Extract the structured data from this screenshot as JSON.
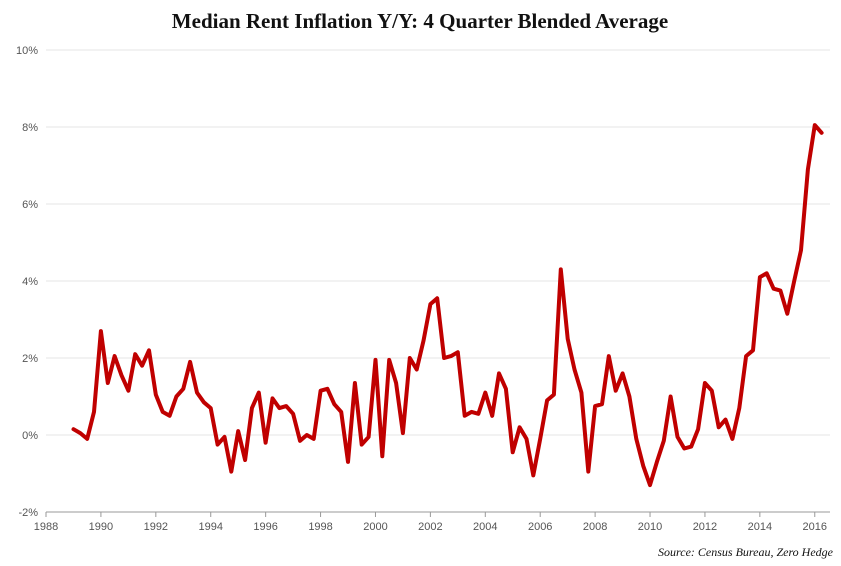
{
  "chart_data": {
    "type": "line",
    "title": "Median Rent Inflation Y/Y: 4 Quarter Blended Average",
    "source": "Source: Census Bureau, Zero Hedge",
    "xlabel": "",
    "ylabel": "",
    "xlim": [
      1988,
      2016.3
    ],
    "ylim": [
      -2,
      10
    ],
    "x_ticks": [
      "1988",
      "1990",
      "1992",
      "1994",
      "1996",
      "1998",
      "2000",
      "2002",
      "2004",
      "2006",
      "2008",
      "2010",
      "2012",
      "2014",
      "2016"
    ],
    "y_ticks": [
      "10%",
      "8%",
      "6%",
      "4%",
      "2%",
      "0%",
      "-2%"
    ],
    "grid": true,
    "legend": "none",
    "line_color": "#c00000",
    "series": [
      {
        "x": [
          1989.0,
          1989.25,
          1989.5,
          1989.75,
          1990.0,
          1990.25,
          1990.5,
          1990.75,
          1991.0,
          1991.25,
          1991.5,
          1991.75,
          1992.0,
          1992.25,
          1992.5,
          1992.75,
          1993.0,
          1993.25,
          1993.5,
          1993.75,
          1994.0,
          1994.25,
          1994.5,
          1994.75,
          1995.0,
          1995.25,
          1995.5,
          1995.75,
          1996.0,
          1996.25,
          1996.5,
          1996.75,
          1997.0,
          1997.25,
          1997.5,
          1997.75,
          1998.0,
          1998.25,
          1998.5,
          1998.75,
          1999.0,
          1999.25,
          1999.5,
          1999.75,
          2000.0,
          2000.25,
          2000.5,
          2000.75,
          2001.0,
          2001.25,
          2001.5,
          2001.75,
          2002.0,
          2002.25,
          2002.5,
          2002.75,
          2003.0,
          2003.25,
          2003.5,
          2003.75,
          2004.0,
          2004.25,
          2004.5,
          2004.75,
          2005.0,
          2005.25,
          2005.5,
          2005.75,
          2006.0,
          2006.25,
          2006.5,
          2006.75,
          2007.0,
          2007.25,
          2007.5,
          2007.75,
          2008.0,
          2008.25,
          2008.5,
          2008.75,
          2009.0,
          2009.25,
          2009.5,
          2009.75,
          2010.0,
          2010.25,
          2010.5,
          2010.75,
          2011.0,
          2011.25,
          2011.5,
          2011.75,
          2012.0,
          2012.25,
          2012.5,
          2012.75,
          2013.0,
          2013.25,
          2013.5,
          2013.75,
          2014.0,
          2014.25,
          2014.5,
          2014.75,
          2015.0,
          2015.25,
          2015.5,
          2015.75,
          2016.0,
          2016.25
        ],
        "y": [
          0.15,
          0.05,
          -0.1,
          0.6,
          2.7,
          1.35,
          2.05,
          1.55,
          1.15,
          2.1,
          1.8,
          2.2,
          1.05,
          0.6,
          0.5,
          1.0,
          1.2,
          1.9,
          1.1,
          0.85,
          0.7,
          -0.25,
          -0.05,
          -0.95,
          0.1,
          -0.65,
          0.7,
          1.1,
          -0.2,
          0.95,
          0.7,
          0.75,
          0.55,
          -0.15,
          0.0,
          -0.1,
          1.15,
          1.2,
          0.8,
          0.6,
          -0.7,
          1.35,
          -0.25,
          -0.05,
          1.95,
          -0.55,
          1.95,
          1.35,
          0.05,
          2.0,
          1.7,
          2.45,
          3.4,
          3.55,
          2.0,
          2.05,
          2.15,
          0.5,
          0.6,
          0.55,
          1.1,
          0.5,
          1.6,
          1.2,
          -0.45,
          0.2,
          -0.1,
          -1.05,
          -0.1,
          0.9,
          1.05,
          4.3,
          2.5,
          1.7,
          1.1,
          -0.95,
          0.75,
          0.8,
          2.05,
          1.15,
          1.6,
          1.0,
          -0.1,
          -0.8,
          -1.3,
          -0.7,
          -0.15,
          1.0,
          -0.05,
          -0.35,
          -0.3,
          0.15,
          1.35,
          1.15,
          0.2,
          0.4,
          -0.1,
          0.7,
          2.05,
          2.2,
          4.1,
          4.2,
          3.8,
          3.75,
          3.15,
          4.0,
          4.8,
          6.9,
          8.05,
          7.85
        ]
      }
    ]
  }
}
